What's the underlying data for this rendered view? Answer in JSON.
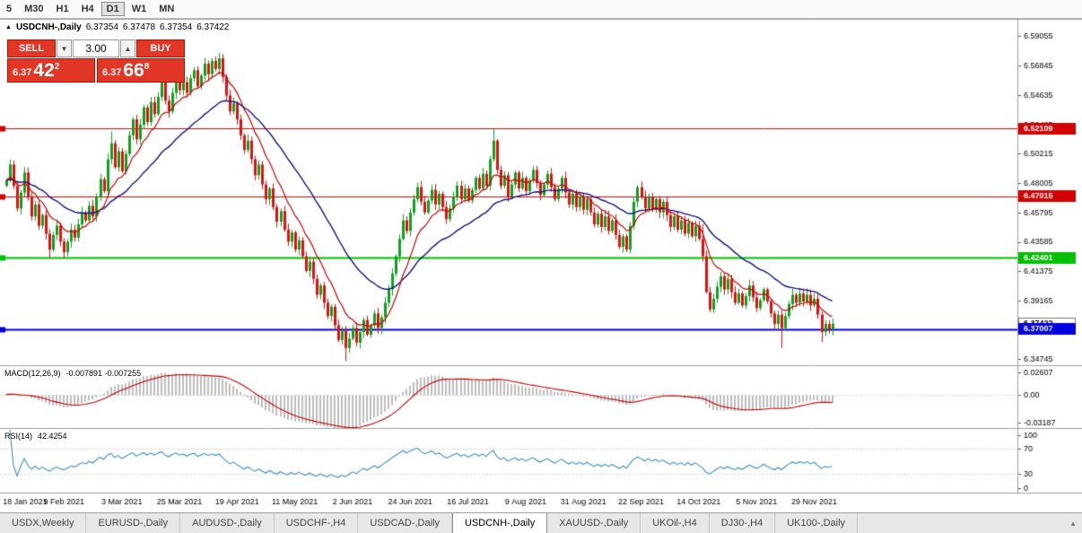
{
  "toolbar": {
    "periods": [
      {
        "label": "5",
        "active": false
      },
      {
        "label": "M30",
        "active": false
      },
      {
        "label": "H1",
        "active": false
      },
      {
        "label": "H4",
        "active": false
      },
      {
        "label": "D1",
        "active": true
      },
      {
        "label": "W1",
        "active": false
      },
      {
        "label": "MN",
        "active": false
      }
    ]
  },
  "chart": {
    "marker": "▲",
    "title": "USDCNH-,Daily",
    "ohlc": {
      "o": "6.37354",
      "h": "6.37478",
      "l": "6.37354",
      "c": "6.37422"
    },
    "trade_panel": {
      "sell_label": "SELL",
      "buy_label": "BUY",
      "volume": "3.00",
      "spin_down": "▼",
      "spin_up": "▲",
      "sell_price": {
        "prefix": "6.37",
        "big": "42",
        "sup": "2"
      },
      "buy_price": {
        "prefix": "6.37",
        "big": "66",
        "sup": "8"
      }
    }
  },
  "chart_data": {
    "type": "candlestick",
    "symbol": "USDCNH-,Daily",
    "colors": {
      "bull": "#0aa11e",
      "bear": "#e01010",
      "ma_fast": "#c80000",
      "ma_slow": "#14147e",
      "macd_hist": "#bdbdbd",
      "macd_signal": "#c40000",
      "rsi": "#3e8cc7"
    },
    "ma": [
      {
        "period": 10,
        "color": "#c80000"
      },
      {
        "period": 30,
        "color": "#14147e"
      }
    ],
    "y_axis": {
      "min": 6.343,
      "max": 6.603,
      "ticks": [
        "6.59055",
        "6.56845",
        "6.54635",
        "6.52425",
        "6.50215",
        "6.48005",
        "6.45795",
        "6.43585",
        "6.41375",
        "6.39165",
        "6.36955",
        "6.34745"
      ]
    },
    "levels": [
      {
        "price": 6.52109,
        "label": "6.52109",
        "color": "#d40000",
        "width": 1
      },
      {
        "price": 6.47015,
        "label": "6.47015",
        "color": "#d40000",
        "width": 1
      },
      {
        "price": 6.42401,
        "label": "6.42401",
        "color": "#00c100",
        "width": 2
      },
      {
        "price": 6.37007,
        "label": "6.37007",
        "color": "#0000e0",
        "width": 2
      }
    ],
    "current_price": {
      "value": 6.37422,
      "label": "6.37422"
    },
    "x_labels": [
      {
        "i": 0,
        "label": "18 Jan 2021"
      },
      {
        "i": 16,
        "label": "9 Feb 2021"
      },
      {
        "i": 32,
        "label": "3 Mar 2021"
      },
      {
        "i": 48,
        "label": "25 Mar 2021"
      },
      {
        "i": 64,
        "label": "19 Apr 2021"
      },
      {
        "i": 80,
        "label": "11 May 2021"
      },
      {
        "i": 96,
        "label": "2 Jun 2021"
      },
      {
        "i": 112,
        "label": "24 Jun 2021"
      },
      {
        "i": 128,
        "label": "16 Jul 2021"
      },
      {
        "i": 144,
        "label": "9 Aug 2021"
      },
      {
        "i": 160,
        "label": "31 Aug 2021"
      },
      {
        "i": 176,
        "label": "22 Sep 2021"
      },
      {
        "i": 192,
        "label": "14 Oct 2021"
      },
      {
        "i": 208,
        "label": "5 Nov 2021"
      },
      {
        "i": 224,
        "label": "29 Nov 2021"
      }
    ],
    "closes": [
      6.482,
      6.494,
      6.478,
      6.461,
      6.473,
      6.488,
      6.47,
      6.455,
      6.464,
      6.448,
      6.456,
      6.442,
      6.43,
      6.441,
      6.448,
      6.436,
      6.428,
      6.436,
      6.445,
      6.439,
      6.449,
      6.458,
      6.452,
      6.463,
      6.455,
      6.47,
      6.483,
      6.474,
      6.498,
      6.51,
      6.492,
      6.504,
      6.489,
      6.502,
      6.516,
      6.528,
      6.513,
      6.524,
      6.537,
      6.526,
      6.541,
      6.532,
      6.545,
      6.556,
      6.542,
      6.534,
      6.548,
      6.559,
      6.55,
      6.556,
      6.548,
      6.559,
      6.565,
      6.553,
      6.561,
      6.57,
      6.562,
      6.572,
      6.566,
      6.574,
      6.56,
      6.546,
      6.534,
      6.54,
      6.528,
      6.516,
      6.505,
      6.512,
      6.498,
      6.486,
      6.494,
      6.479,
      6.468,
      6.476,
      6.462,
      6.451,
      6.459,
      6.445,
      6.436,
      6.443,
      6.43,
      6.437,
      6.425,
      6.414,
      6.421,
      6.408,
      6.396,
      6.403,
      6.39,
      6.38,
      6.387,
      6.373,
      6.362,
      6.369,
      6.356,
      6.363,
      6.371,
      6.36,
      6.368,
      6.377,
      6.366,
      6.373,
      6.382,
      6.371,
      6.379,
      6.39,
      6.4,
      6.412,
      6.425,
      6.438,
      6.452,
      6.444,
      6.458,
      6.468,
      6.477,
      6.466,
      6.458,
      6.467,
      6.475,
      6.464,
      6.472,
      6.462,
      6.453,
      6.461,
      6.47,
      6.478,
      6.468,
      6.476,
      6.467,
      6.475,
      6.484,
      6.476,
      6.487,
      6.478,
      6.498,
      6.512,
      6.49,
      6.478,
      6.486,
      6.47,
      6.479,
      6.488,
      6.476,
      6.484,
      6.474,
      6.482,
      6.49,
      6.48,
      6.471,
      6.479,
      6.487,
      6.477,
      6.468,
      6.476,
      6.484,
      6.473,
      6.464,
      6.472,
      6.462,
      6.47,
      6.46,
      6.468,
      6.458,
      6.449,
      6.457,
      6.447,
      6.455,
      6.444,
      6.452,
      6.441,
      6.432,
      6.44,
      6.43,
      6.448,
      6.466,
      6.477,
      6.47,
      6.461,
      6.47,
      6.46,
      6.468,
      6.458,
      6.466,
      6.456,
      6.447,
      6.455,
      6.445,
      6.452,
      6.442,
      6.45,
      6.44,
      6.448,
      6.438,
      6.425,
      6.398,
      6.385,
      6.393,
      6.402,
      6.41,
      6.4,
      6.408,
      6.398,
      6.39,
      6.397,
      6.388,
      6.395,
      6.403,
      6.394,
      6.386,
      6.392,
      6.4,
      6.391,
      6.382,
      6.374,
      6.381,
      6.371,
      6.38,
      6.389,
      6.396,
      6.39,
      6.397,
      6.391,
      6.396,
      6.388,
      6.393,
      6.381,
      6.368,
      6.374,
      6.37,
      6.3742
    ],
    "wick_overrides": {
      "12": {
        "low": 6.424
      },
      "29": {
        "high": 6.519
      },
      "59": {
        "high": 6.578
      },
      "94": {
        "low": 6.346
      },
      "135": {
        "high": 6.5215
      },
      "172": {
        "low": 6.428
      },
      "193": {
        "high": 6.449
      },
      "215": {
        "low": 6.356
      },
      "226": {
        "low": 6.3605
      }
    },
    "macd": {
      "label": "MACD(12,26,9)",
      "values": "-0.007891 -0.007255",
      "fast": 12,
      "slow": 26,
      "signal": 9,
      "scale_max": 0.02607,
      "scale_min": -0.03187,
      "ticks": [
        "0.02607",
        "0.00",
        "-0.03187"
      ]
    },
    "rsi": {
      "label": "RSI(14)",
      "value_text": "42.4254",
      "period": 14,
      "levels": [
        70,
        30
      ],
      "ticks": [
        "100",
        "70",
        "30",
        "0"
      ]
    }
  },
  "tabs": {
    "scroll_icon": "▲",
    "items": [
      {
        "label": "USDX,Weekly",
        "active": false
      },
      {
        "label": "EURUSD-,Daily",
        "active": false
      },
      {
        "label": "AUDUSD-,Daily",
        "active": false
      },
      {
        "label": "USDCHF-,H4",
        "active": false
      },
      {
        "label": "USDCAD-,Daily",
        "active": false
      },
      {
        "label": "USDCNH-,Daily",
        "active": true
      },
      {
        "label": "XAUUSD-,Daily",
        "active": false
      },
      {
        "label": "UKOil-,H4",
        "active": false
      },
      {
        "label": "DJ30-,H4",
        "active": false
      },
      {
        "label": "UK100-,Daily",
        "active": false
      }
    ]
  }
}
